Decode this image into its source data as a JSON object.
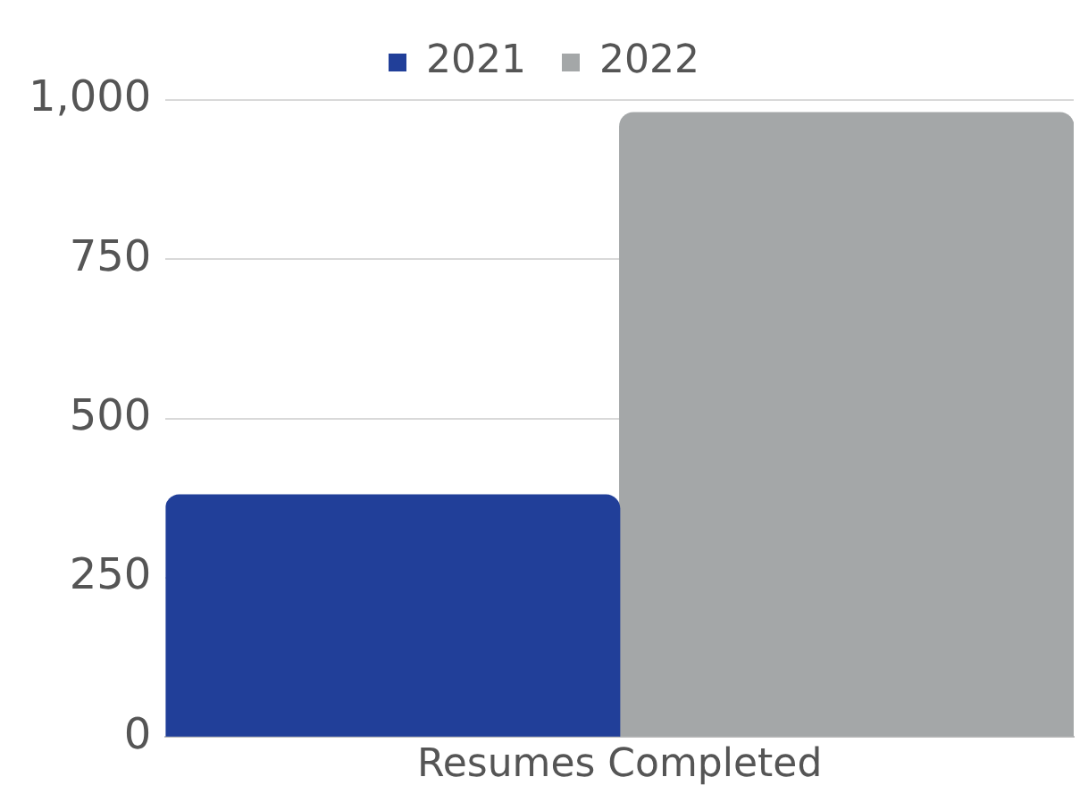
{
  "chart_data": {
    "type": "bar",
    "categories": [
      "Resumes Completed"
    ],
    "series": [
      {
        "name": "2021",
        "color": "#213f99",
        "values": [
          380
        ]
      },
      {
        "name": "2022",
        "color": "#a4a7a8",
        "values": [
          980
        ]
      }
    ],
    "ylim": [
      0,
      1000
    ],
    "yticks": [
      0,
      {
        "value": 250,
        "label": "250"
      },
      {
        "value": 500,
        "label": "500"
      },
      {
        "value": 750,
        "label": "750"
      },
      {
        "value": 1000,
        "label": "1,000"
      }
    ],
    "grid": "y",
    "legend": "top"
  }
}
